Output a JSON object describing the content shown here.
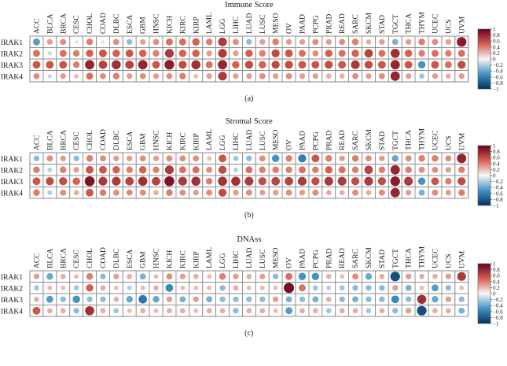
{
  "chart_data": [
    {
      "type": "heatmap",
      "title": "Immune Score",
      "caption": "(a)",
      "columns": [
        "ACC",
        "BLCA",
        "BRCA",
        "CESC",
        "CHOL",
        "COAD",
        "DLBC",
        "ESCA",
        "GBM",
        "HNSC",
        "KICH",
        "KIRC",
        "KIRP",
        "LAML",
        "LGG",
        "LIHC",
        "LUAD",
        "LUSC",
        "MESO",
        "OV",
        "PAAD",
        "PCPG",
        "PRAD",
        "READ",
        "SARC",
        "SKCM",
        "STAD",
        "TGCT",
        "THCA",
        "THYM",
        "UCEC",
        "UCS",
        "UVM"
      ],
      "rows": [
        "IRAK1",
        "IRAK2",
        "IRAK3",
        "IRAK4"
      ],
      "values": [
        [
          -0.45,
          0.3,
          0.35,
          0.1,
          0.4,
          0.1,
          0.35,
          -0.3,
          0.3,
          0.35,
          0.45,
          0.45,
          0.5,
          0.4,
          0.7,
          0.35,
          -0.3,
          0.3,
          0.4,
          0.3,
          0.3,
          0.35,
          0.3,
          0.35,
          0.4,
          0.25,
          0.3,
          -0.35,
          0.3,
          0.4,
          0.35,
          0.3,
          0.85
        ],
        [
          0.45,
          -0.15,
          0.45,
          0.4,
          0.5,
          0.55,
          0.5,
          0.55,
          0.5,
          0.4,
          0.7,
          0.5,
          0.5,
          0.3,
          0.7,
          0.3,
          0.5,
          0.4,
          0.6,
          0.55,
          0.45,
          0.35,
          0.5,
          0.45,
          0.5,
          0.65,
          0.45,
          0.75,
          0.5,
          0.4,
          0.45,
          0.4,
          0.45
        ],
        [
          0.55,
          0.55,
          0.55,
          0.4,
          0.8,
          0.65,
          0.75,
          0.65,
          0.8,
          0.55,
          0.85,
          0.6,
          0.75,
          0.45,
          0.8,
          0.5,
          0.6,
          0.5,
          0.6,
          0.6,
          0.55,
          0.55,
          0.6,
          0.55,
          0.7,
          0.6,
          0.55,
          0.8,
          0.55,
          -0.5,
          0.55,
          0.45,
          0.6
        ],
        [
          0.35,
          -0.15,
          0.3,
          0.2,
          0.45,
          0.35,
          0.4,
          0.3,
          0.35,
          0.3,
          0.35,
          0.4,
          0.2,
          0.3,
          0.7,
          0.3,
          0.3,
          0.35,
          0.3,
          0.35,
          0.3,
          0.3,
          0.25,
          0.25,
          0.35,
          0.3,
          0.35,
          0.8,
          0.3,
          -0.25,
          0.3,
          0.25,
          0.3
        ]
      ],
      "color_range": [
        -1,
        1
      ],
      "colorbar_ticks": [
        "1",
        "0.8",
        "0.6",
        "0.4",
        "0.2",
        "0",
        "−0.2",
        "−0.4",
        "−0.6",
        "−0.8",
        "−1"
      ]
    },
    {
      "type": "heatmap",
      "title": "Stromal Score",
      "caption": "(b)",
      "columns": [
        "ACC",
        "BLCA",
        "BRCA",
        "CESC",
        "CHOL",
        "COAD",
        "DLBC",
        "ESCA",
        "GBM",
        "HNSC",
        "KICH",
        "KIRC",
        "KIRP",
        "LAML",
        "LGG",
        "LIHC",
        "LUAD",
        "LUSC",
        "MESO",
        "OV",
        "PAAD",
        "PCPG",
        "PRAD",
        "READ",
        "SARC",
        "SKCM",
        "STAD",
        "TGCT",
        "THCA",
        "THYM",
        "UCEC",
        "UCS",
        "UVM"
      ],
      "rows": [
        "IRAK1",
        "IRAK2",
        "IRAK3",
        "IRAK4"
      ],
      "values": [
        [
          -0.3,
          0.35,
          0.3,
          -0.3,
          0.4,
          0.35,
          0.3,
          0.3,
          0.35,
          0.3,
          0.35,
          0.35,
          0.35,
          0.2,
          0.55,
          -0.25,
          -0.3,
          0.35,
          -0.5,
          0.4,
          -0.6,
          0.55,
          0.4,
          0.3,
          0.4,
          0.35,
          0.3,
          -0.4,
          0.35,
          0.4,
          0.4,
          0.35,
          0.8
        ],
        [
          0.4,
          -0.2,
          0.4,
          0.3,
          0.55,
          0.55,
          0.5,
          0.4,
          0.5,
          0.4,
          0.7,
          0.45,
          0.45,
          0.35,
          0.6,
          -0.2,
          0.45,
          0.4,
          0.4,
          0.4,
          0.45,
          0.4,
          0.5,
          0.45,
          0.4,
          0.65,
          0.4,
          0.8,
          0.4,
          0.35,
          0.35,
          0.3,
          0.4
        ],
        [
          0.55,
          0.6,
          0.6,
          0.5,
          0.9,
          0.7,
          0.7,
          0.65,
          0.75,
          0.65,
          0.9,
          0.7,
          0.75,
          0.4,
          0.75,
          0.75,
          0.7,
          0.6,
          0.65,
          0.65,
          0.7,
          0.6,
          0.7,
          0.7,
          0.6,
          0.7,
          0.6,
          0.85,
          0.7,
          -0.5,
          0.55,
          0.4,
          0.6
        ],
        [
          0.4,
          -0.2,
          0.35,
          0.25,
          0.55,
          0.4,
          0.35,
          0.35,
          0.35,
          0.25,
          0.4,
          0.35,
          0.3,
          0.35,
          0.6,
          0.3,
          0.35,
          0.3,
          0.3,
          0.35,
          0.3,
          0.35,
          0.25,
          0.25,
          0.35,
          0.25,
          0.35,
          0.8,
          0.3,
          -0.35,
          0.35,
          0.3,
          0.4
        ]
      ],
      "color_range": [
        -1,
        1
      ],
      "colorbar_ticks": [
        "1",
        "0.8",
        "0.6",
        "0.4",
        "0.2",
        "0",
        "−0.2",
        "−0.4",
        "−0.6",
        "−0.8",
        "−1"
      ]
    },
    {
      "type": "heatmap",
      "title": "DNAss",
      "caption": "(c)",
      "columns": [
        "ACC",
        "BLCA",
        "BRCA",
        "CESC",
        "CHOL",
        "COAD",
        "DLBC",
        "ESCA",
        "GBM",
        "HNSC",
        "KICH",
        "KIRC",
        "KIRP",
        "LAML",
        "LGG",
        "LIHC",
        "LUAD",
        "LUSC",
        "MESO",
        "OV",
        "PAAD",
        "PCPG",
        "PRAD",
        "READ",
        "SARC",
        "SKCM",
        "STAD",
        "TGCT",
        "THCA",
        "THYM",
        "UCEC",
        "UCS",
        "UVM"
      ],
      "rows": [
        "IRAK1",
        "IRAK2",
        "IRAK3",
        "IRAK4"
      ],
      "values": [
        [
          0.3,
          -0.4,
          0.25,
          0.2,
          0.4,
          -0.3,
          0.3,
          0.25,
          -0.35,
          0.2,
          0.35,
          0.3,
          0.25,
          0.2,
          0.4,
          0.3,
          0.25,
          0.3,
          -0.3,
          0.45,
          -0.5,
          -0.5,
          0.25,
          0.2,
          0.35,
          -0.4,
          0.25,
          -0.85,
          0.3,
          0.25,
          0.25,
          0.3,
          0.7
        ],
        [
          -0.25,
          0.2,
          0.2,
          -0.25,
          0.5,
          0.25,
          0.2,
          -0.2,
          0.2,
          0.25,
          -0.55,
          0.2,
          0.2,
          0.2,
          -0.3,
          0.25,
          0.2,
          0.2,
          0.2,
          0.95,
          0.45,
          -0.25,
          -0.2,
          -0.25,
          -0.3,
          -0.3,
          -0.3,
          0.3,
          -0.35,
          0.2,
          -0.45,
          -0.3,
          0.2
        ],
        [
          0.25,
          -0.45,
          -0.3,
          -0.5,
          -0.3,
          -0.3,
          0.25,
          -0.4,
          -0.65,
          -0.4,
          0.3,
          -0.35,
          0.3,
          -0.35,
          -0.3,
          -0.3,
          -0.3,
          -0.3,
          0.3,
          -0.35,
          -0.3,
          -0.35,
          0.25,
          -0.3,
          -0.35,
          -0.3,
          -0.3,
          -0.55,
          -0.3,
          0.75,
          -0.4,
          0.3,
          -0.3
        ],
        [
          0.55,
          0.25,
          0.25,
          -0.3,
          0.75,
          0.25,
          -0.25,
          0.2,
          0.25,
          0.2,
          0.25,
          0.25,
          0.2,
          0.25,
          0.25,
          -0.3,
          0.25,
          0.25,
          0.2,
          -0.45,
          0.25,
          0.25,
          -0.25,
          0.25,
          0.25,
          -0.25,
          0.25,
          -0.3,
          0.3,
          -0.85,
          0.25,
          0.25,
          -0.35
        ]
      ],
      "color_range": [
        -1,
        1
      ],
      "colorbar_ticks": [
        "1",
        "0.8",
        "0.6",
        "0.4",
        "0.2",
        "0",
        "−0.2",
        "−0.4",
        "−0.6",
        "−0.8",
        "−1"
      ]
    }
  ],
  "colors": {
    "negative": "#053061",
    "negative_mid": "#4393c3",
    "neutral": "#f7f7f7",
    "positive_mid": "#d6604d",
    "positive": "#67001f",
    "grid": "#8a8a8a"
  }
}
